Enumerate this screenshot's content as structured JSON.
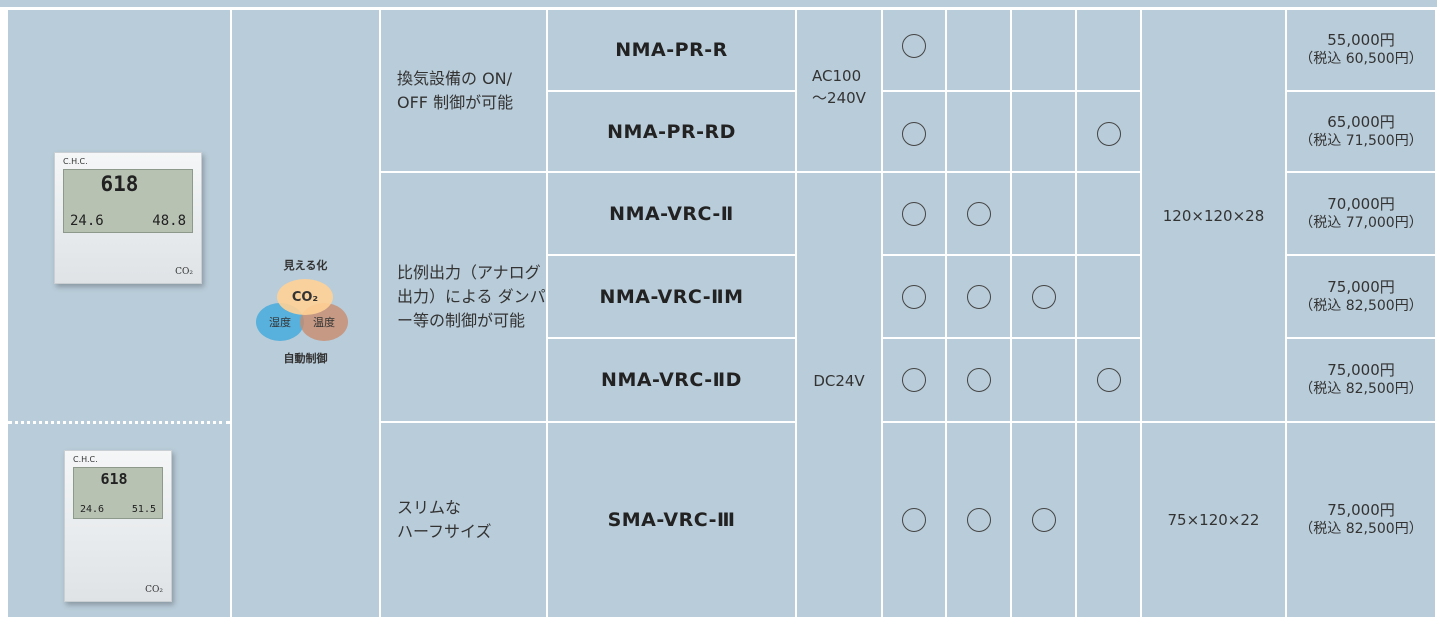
{
  "images": [
    {
      "brand": "C.H.C.",
      "readings": [
        "618",
        "24.6",
        "48.8"
      ],
      "badge": "CO₂"
    },
    {
      "brand": "C.H.C.",
      "readings": [
        "618",
        "24.6",
        "51.5"
      ],
      "badge": "CO₂"
    }
  ],
  "icon": {
    "top": "見える化",
    "center": "CO₂",
    "left": "湿度",
    "right": "温度",
    "bottom": "自動制御"
  },
  "descriptions": [
    "換気設備の ON/ OFF 制御が可能",
    "比例出力（アナログ出力）による ダンパー等の制御が可能",
    "スリムな\nハーフサイズ"
  ],
  "voltages": [
    "AC100\n～240V",
    "DC24V"
  ],
  "sizes": [
    "120×120×28",
    "75×120×22"
  ],
  "models": [
    {
      "name": "NMA-PR-R",
      "features": [
        true,
        false,
        false,
        false
      ],
      "price": "55,000円",
      "price_tax": "（税込 60,500円）"
    },
    {
      "name": "NMA-PR-RD",
      "features": [
        true,
        false,
        false,
        true
      ],
      "price": "65,000円",
      "price_tax": "（税込 71,500円）"
    },
    {
      "name": "NMA-VRC-Ⅱ",
      "features": [
        true,
        true,
        false,
        false
      ],
      "price": "70,000円",
      "price_tax": "（税込 77,000円）"
    },
    {
      "name": "NMA-VRC-ⅡM",
      "features": [
        true,
        true,
        true,
        false
      ],
      "price": "75,000円",
      "price_tax": "（税込 82,500円）"
    },
    {
      "name": "NMA-VRC-ⅡD",
      "features": [
        true,
        true,
        false,
        true
      ],
      "price": "75,000円",
      "price_tax": "（税込 82,500円）"
    },
    {
      "name": "SMA-VRC-Ⅲ",
      "features": [
        true,
        true,
        true,
        false
      ],
      "price": "75,000円",
      "price_tax": "（税込 82,500円）"
    }
  ]
}
